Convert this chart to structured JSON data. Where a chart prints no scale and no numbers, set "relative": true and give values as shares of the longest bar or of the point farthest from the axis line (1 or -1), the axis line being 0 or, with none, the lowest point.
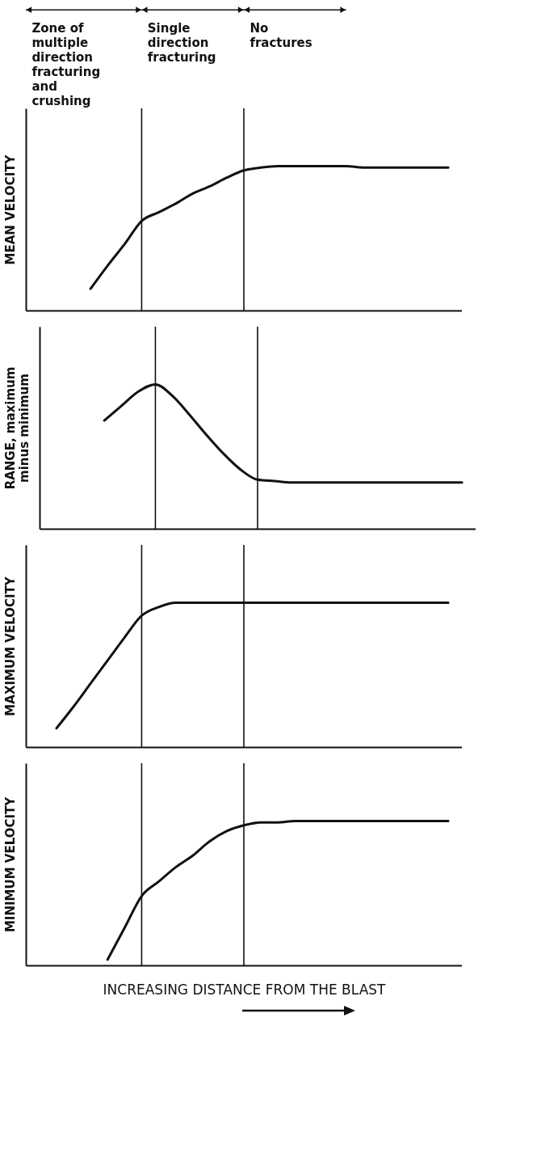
{
  "chart_data": [
    {
      "type": "line",
      "relative": true,
      "tick_labels": false,
      "ylabel": "MEAN VELOCITY",
      "color": "#111111",
      "annotations": [
        "Zone of multiple direction fracturing and crushing",
        "Single direction fracturing",
        "No fractures"
      ],
      "categories": [
        null,
        null,
        null,
        null,
        null,
        null,
        null,
        null,
        null,
        null,
        null,
        null,
        null,
        null,
        null,
        null,
        null,
        null,
        null,
        null,
        null,
        null,
        null,
        null,
        null
      ],
      "values": [
        null,
        null,
        null,
        0.15,
        0.31,
        0.46,
        0.62,
        0.68,
        0.74,
        0.81,
        0.86,
        0.92,
        0.97,
        0.99,
        1,
        1,
        1,
        1,
        1,
        0.99,
        0.99,
        0.99,
        0.99,
        0.99,
        0.99
      ]
    },
    {
      "type": "line",
      "relative": true,
      "tick_labels": false,
      "ylabel": "RANGE, maximum minus minimum",
      "color": "#111111",
      "categories": [
        null,
        null,
        null,
        null,
        null,
        null,
        null,
        null,
        null,
        null,
        null,
        null,
        null,
        null,
        null,
        null,
        null,
        null,
        null,
        null,
        null,
        null,
        null,
        null,
        null
      ],
      "values": [
        null,
        null,
        null,
        0.75,
        0.85,
        0.95,
        1,
        0.92,
        0.79,
        0.65,
        0.52,
        0.41,
        0.34,
        0.33,
        0.32,
        0.32,
        0.32,
        0.32,
        0.32,
        0.32,
        0.32,
        0.32,
        0.32,
        0.32,
        0.32
      ]
    },
    {
      "type": "line",
      "relative": true,
      "tick_labels": false,
      "ylabel": "MAXIMUM VELOCITY",
      "color": "#111111",
      "categories": [
        null,
        null,
        null,
        null,
        null,
        null,
        null,
        null,
        null,
        null,
        null,
        null,
        null,
        null,
        null,
        null,
        null,
        null,
        null,
        null,
        null,
        null,
        null,
        null,
        null
      ],
      "values": [
        null,
        0.13,
        0.28,
        0.44,
        0.6,
        0.76,
        0.91,
        0.97,
        1,
        1,
        1,
        1,
        1,
        1,
        1,
        1,
        1,
        1,
        1,
        1,
        1,
        1,
        1,
        1,
        1
      ]
    },
    {
      "type": "line",
      "relative": true,
      "tick_labels": false,
      "ylabel": "MINIMUM VELOCITY",
      "xlabel": "INCREASING DISTANCE FROM THE BLAST",
      "color": "#111111",
      "categories": [
        null,
        null,
        null,
        null,
        null,
        null,
        null,
        null,
        null,
        null,
        null,
        null,
        null,
        null,
        null,
        null,
        null,
        null,
        null,
        null,
        null,
        null,
        null,
        null,
        null
      ],
      "values": [
        null,
        null,
        null,
        null,
        0.04,
        0.26,
        0.48,
        0.58,
        0.68,
        0.76,
        0.86,
        0.93,
        0.97,
        0.99,
        0.99,
        1,
        1,
        1,
        1,
        1,
        1,
        1,
        1,
        1,
        1
      ]
    }
  ]
}
